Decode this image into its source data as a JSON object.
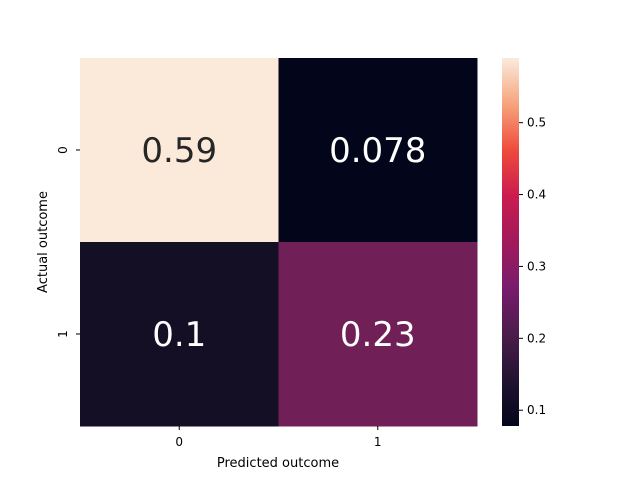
{
  "chart_data": {
    "type": "heatmap",
    "title": "",
    "xlabel": "Predicted outcome",
    "ylabel": "Actual outcome",
    "x_categories": [
      "0",
      "1"
    ],
    "y_categories": [
      "0",
      "1"
    ],
    "values": [
      [
        0.59,
        0.078
      ],
      [
        0.1,
        0.23
      ]
    ],
    "annotations": [
      [
        "0.59",
        "0.078"
      ],
      [
        "0.1",
        "0.23"
      ]
    ],
    "colorbar": {
      "range": [
        0.078,
        0.59
      ],
      "ticks": [
        0.1,
        0.2,
        0.3,
        0.4,
        0.5
      ],
      "tick_labels": [
        "0.1",
        "0.2",
        "0.3",
        "0.4",
        "0.5"
      ],
      "colormap": "rocket"
    },
    "cell_colors": [
      [
        "#fbe9da",
        "#03051a"
      ],
      [
        "#140f25",
        "#701f57"
      ]
    ]
  }
}
